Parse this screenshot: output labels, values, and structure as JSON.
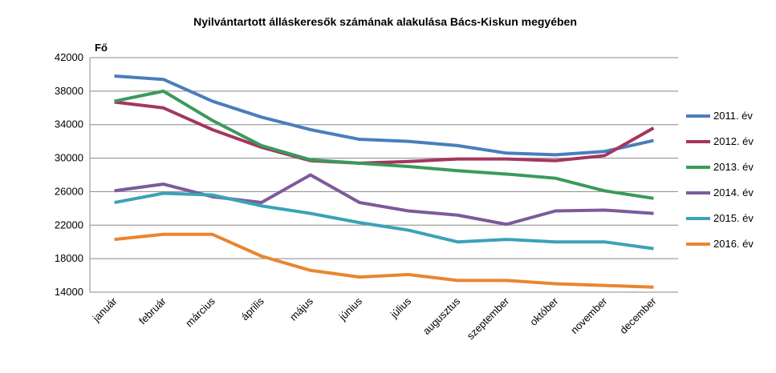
{
  "chart_data": {
    "type": "line",
    "title": "Nyilvántartott álláskeresők számának alakulása Bács-Kiskun megyében",
    "y_label": "Fő",
    "categories": [
      "január",
      "február",
      "március",
      "április",
      "május",
      "június",
      "július",
      "augusztus",
      "szeptember",
      "október",
      "november",
      "december"
    ],
    "ylim": [
      14000,
      42000
    ],
    "yticks": [
      14000,
      18000,
      22000,
      26000,
      30000,
      34000,
      38000,
      42000
    ],
    "grid": true,
    "legend": "right",
    "series": [
      {
        "name": "2011. év",
        "color": "#4a7ebb",
        "values": [
          39800,
          39400,
          36800,
          34900,
          33400,
          32250,
          32000,
          31500,
          30600,
          30400,
          30800,
          32100
        ]
      },
      {
        "name": "2012. év",
        "color": "#a3365f",
        "values": [
          36700,
          36000,
          33400,
          31300,
          29700,
          29400,
          29600,
          29900,
          29900,
          29700,
          30300,
          33600
        ]
      },
      {
        "name": "2013. év",
        "color": "#3a9a5b",
        "values": [
          36800,
          38000,
          34500,
          31500,
          29800,
          29400,
          29000,
          28500,
          28100,
          27600,
          26100,
          25200
        ]
      },
      {
        "name": "2014. év",
        "color": "#7d5a9a",
        "values": [
          26100,
          26900,
          25400,
          24700,
          28000,
          24700,
          23700,
          23200,
          22100,
          23700,
          23800,
          23400
        ]
      },
      {
        "name": "2015. év",
        "color": "#3aa3b8",
        "values": [
          24700,
          25800,
          25600,
          24300,
          23400,
          22300,
          21400,
          20000,
          20300,
          20000,
          20000,
          19200
        ]
      },
      {
        "name": "2016. év",
        "color": "#e8862f",
        "values": [
          20300,
          20900,
          20900,
          18300,
          16600,
          15800,
          16100,
          15400,
          15400,
          15000,
          14800,
          14600
        ]
      }
    ]
  }
}
